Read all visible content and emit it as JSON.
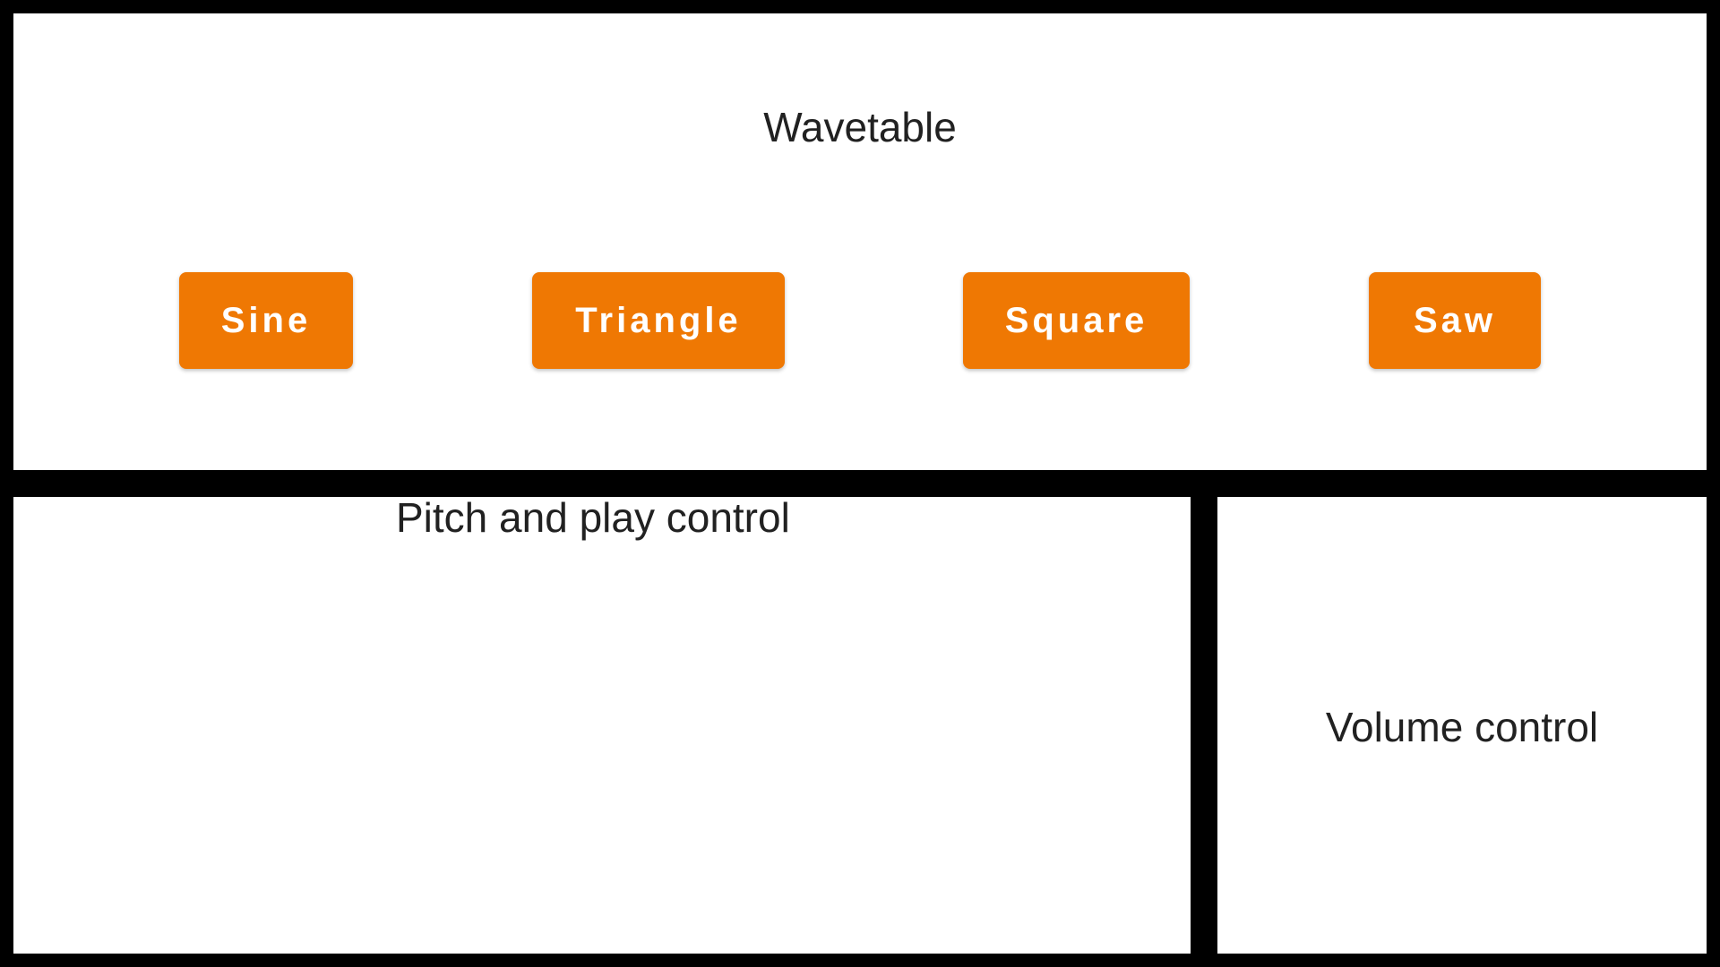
{
  "colors": {
    "background": "#000000",
    "panel": "#ffffff",
    "button": "#ef7803",
    "button_text": "#ffffff",
    "title_text": "#212121"
  },
  "wavetable": {
    "title": "Wavetable",
    "buttons": [
      {
        "label": "Sine"
      },
      {
        "label": "Triangle"
      },
      {
        "label": "Square"
      },
      {
        "label": "Saw"
      }
    ]
  },
  "pitch": {
    "title": "Pitch and play control"
  },
  "volume": {
    "title": "Volume control"
  }
}
